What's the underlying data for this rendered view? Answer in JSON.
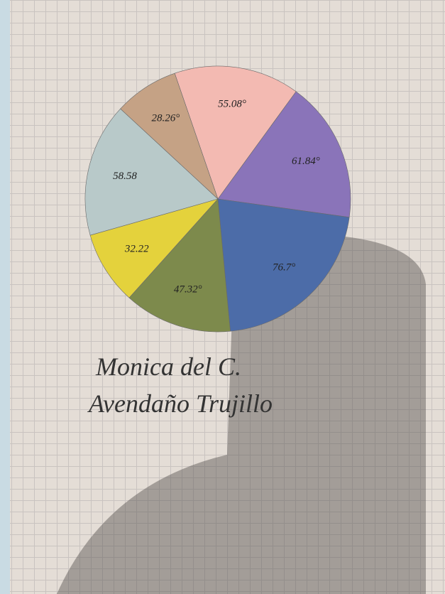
{
  "chart_data": {
    "type": "pie",
    "categories": [
      null,
      null,
      null,
      null,
      null,
      null,
      null
    ],
    "values": [
      55.08,
      61.84,
      76.7,
      47.32,
      32.22,
      58.58,
      28.26
    ],
    "value_labels": [
      "55.08°",
      "61.84°",
      "76.7°",
      "47.32°",
      "32.22",
      "58.58",
      "28.26°"
    ],
    "colors": [
      "#f3bab2",
      "#8a74b9",
      "#4c6ca8",
      "#7d8a4c",
      "#e4d23c",
      "#b8c9c9",
      "#c5a285"
    ],
    "annotations": [
      "Monica del C.",
      "Avendaño Trujillo"
    ]
  }
}
